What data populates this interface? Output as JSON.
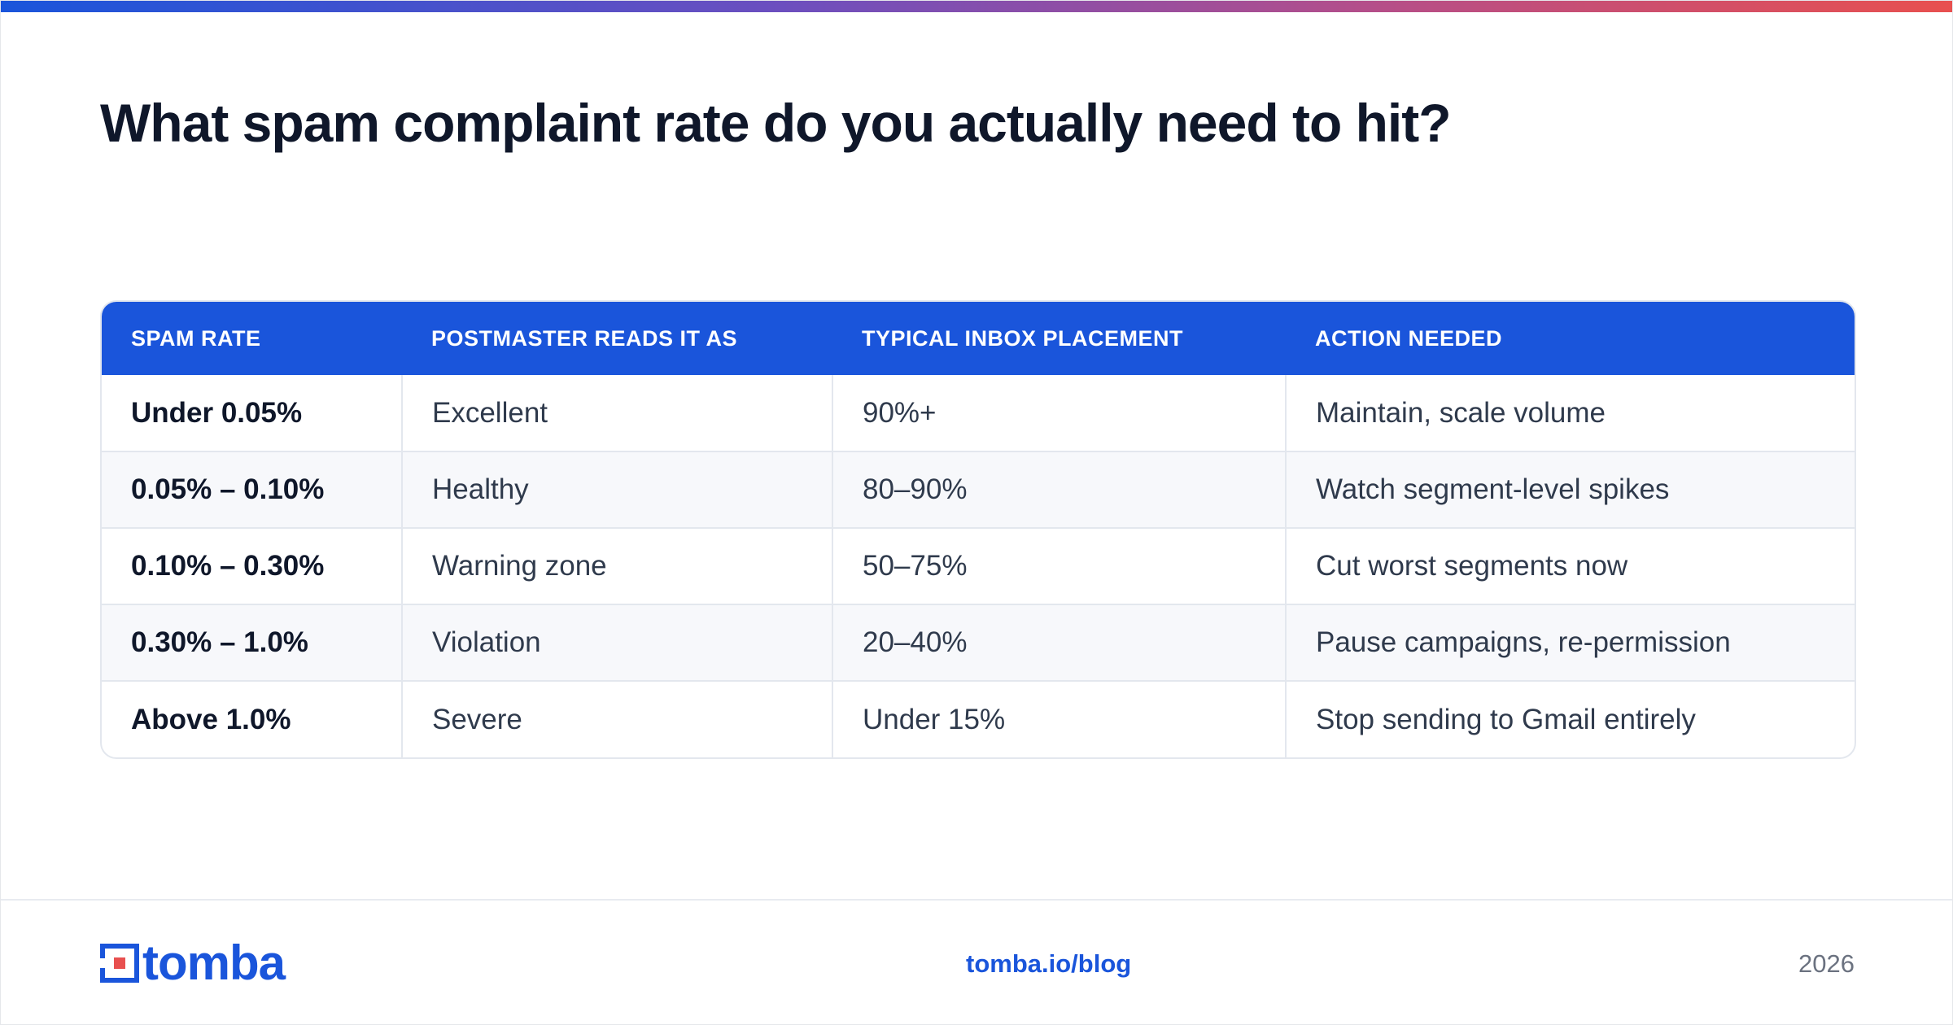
{
  "colors": {
    "accent": "#1a55db",
    "title": "#0f172a",
    "body_text": "#2f3a4c",
    "muted": "#6b7280",
    "gradient": [
      "#1a55db",
      "#6c4fbf",
      "#b44e8a",
      "#e8504f"
    ]
  },
  "title": "What spam complaint rate do you actually need to hit?",
  "table": {
    "headers": [
      "SPAM RATE",
      "POSTMASTER READS IT AS",
      "TYPICAL INBOX PLACEMENT",
      "ACTION NEEDED"
    ],
    "rows": [
      [
        "Under 0.05%",
        "Excellent",
        "90%+",
        "Maintain, scale volume"
      ],
      [
        "0.05% – 0.10%",
        "Healthy",
        "80–90%",
        "Watch segment-level spikes"
      ],
      [
        "0.10% – 0.30%",
        "Warning zone",
        "50–75%",
        "Cut worst segments now"
      ],
      [
        "0.30% – 1.0%",
        "Violation",
        "20–40%",
        "Pause campaigns, re-permission"
      ],
      [
        "Above 1.0%",
        "Severe",
        "Under 15%",
        "Stop sending to Gmail entirely"
      ]
    ]
  },
  "footer": {
    "logo": {
      "icon": "tomba-logo-icon",
      "text": "tomba"
    },
    "link": "tomba.io/blog",
    "year": "2026"
  }
}
